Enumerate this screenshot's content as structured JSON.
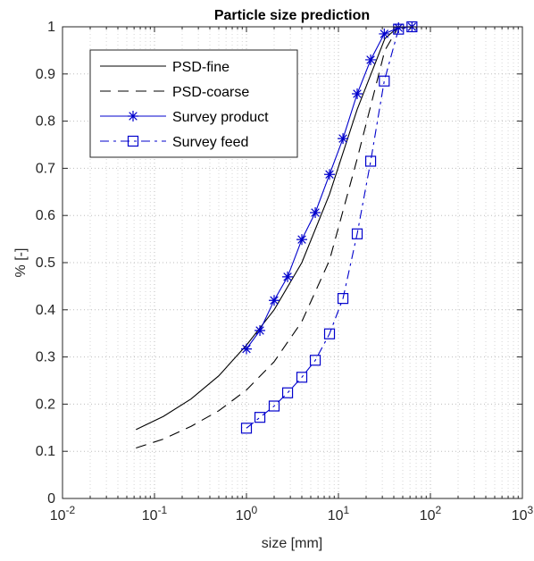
{
  "chart_data": {
    "type": "line",
    "title": "Particle size prediction",
    "xlabel": "size  [mm]",
    "ylabel": "% [-]",
    "xscale": "log",
    "xlim": [
      0.01,
      1000
    ],
    "ylim": [
      0,
      1
    ],
    "grid": "major and minor, dotted",
    "legend_position": "top-left",
    "x_tick_labels": [
      {
        "base": "10",
        "exp": "-2"
      },
      {
        "base": "10",
        "exp": "-1"
      },
      {
        "base": "10",
        "exp": "0"
      },
      {
        "base": "10",
        "exp": "1"
      },
      {
        "base": "10",
        "exp": "2"
      },
      {
        "base": "10",
        "exp": "3"
      }
    ],
    "y_tick_labels": [
      "0",
      "0.1",
      "0.2",
      "0.3",
      "0.4",
      "0.5",
      "0.6",
      "0.7",
      "0.8",
      "0.9",
      "1"
    ],
    "series": [
      {
        "name": "PSD-fine",
        "color": "#000000",
        "line": "solid",
        "marker": "none",
        "x": [
          0.063,
          0.125,
          0.25,
          0.5,
          1,
          2,
          4,
          8,
          16,
          32,
          45,
          64,
          100,
          200,
          500
        ],
        "y": [
          0.146,
          0.174,
          0.211,
          0.26,
          0.325,
          0.4,
          0.5,
          0.645,
          0.825,
          0.975,
          1.0,
          1.0,
          1.0,
          1.0,
          1.0
        ]
      },
      {
        "name": "PSD-coarse",
        "color": "#000000",
        "line": "dashed",
        "marker": "none",
        "x": [
          0.063,
          0.125,
          0.25,
          0.5,
          1,
          2,
          4,
          8,
          16,
          32,
          45,
          64,
          100
        ],
        "y": [
          0.107,
          0.126,
          0.153,
          0.186,
          0.23,
          0.29,
          0.375,
          0.505,
          0.72,
          0.95,
          1.0,
          1.0,
          1.0
        ]
      },
      {
        "name": "Survey product",
        "color": "#0000cc",
        "line": "solid",
        "marker": "asterisk",
        "x": [
          1,
          1.4,
          2,
          2.8,
          4,
          5.6,
          8,
          11.2,
          16,
          22.4,
          31.5,
          45,
          63
        ],
        "y": [
          0.317,
          0.356,
          0.42,
          0.47,
          0.549,
          0.606,
          0.687,
          0.763,
          0.858,
          0.93,
          0.985,
          0.998,
          1.0
        ]
      },
      {
        "name": "Survey feed",
        "color": "#0000cc",
        "line": "dashdot",
        "marker": "square",
        "x": [
          1,
          1.4,
          2,
          2.8,
          4,
          5.6,
          8,
          11.2,
          16,
          22.4,
          31.5,
          45,
          63
        ],
        "y": [
          0.149,
          0.172,
          0.196,
          0.224,
          0.257,
          0.293,
          0.349,
          0.424,
          0.561,
          0.715,
          0.885,
          0.995,
          1.0
        ]
      }
    ]
  }
}
